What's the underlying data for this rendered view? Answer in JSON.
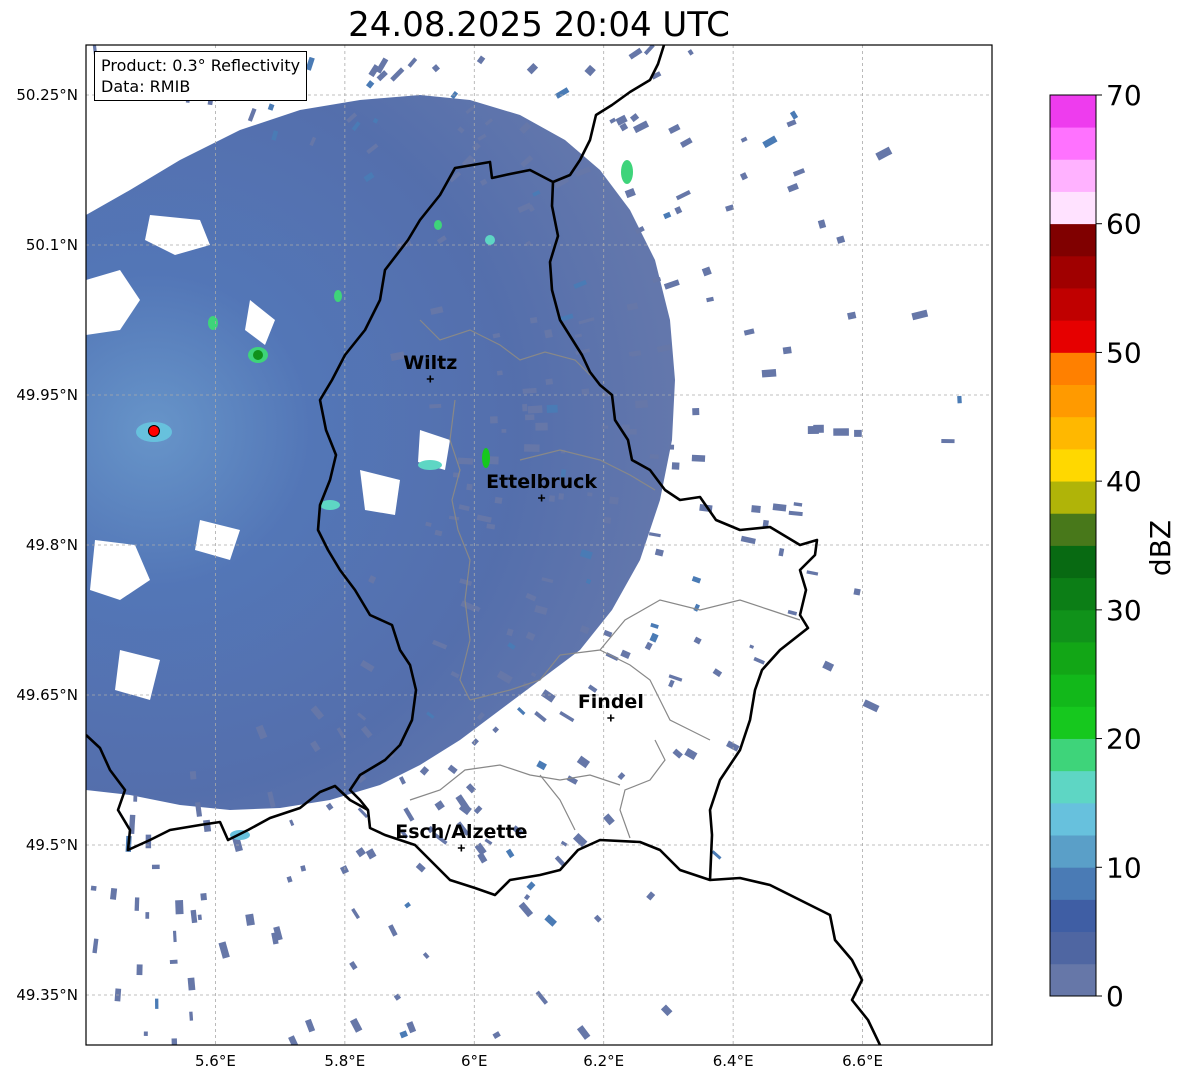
{
  "title": "24.08.2025 20:04 UTC",
  "info": {
    "product": "Product: 0.3° Reflectivity",
    "data": "Data: RMIB"
  },
  "map": {
    "lon_range": [
      5.4,
      6.8
    ],
    "lat_range": [
      49.3,
      50.3
    ],
    "lon_ticks": [
      {
        "value": 5.6,
        "label": "5.6°E"
      },
      {
        "value": 5.8,
        "label": "5.8°E"
      },
      {
        "value": 6.0,
        "label": "6°E"
      },
      {
        "value": 6.2,
        "label": "6.2°E"
      },
      {
        "value": 6.4,
        "label": "6.4°E"
      },
      {
        "value": 6.6,
        "label": "6.6°E"
      }
    ],
    "lat_ticks": [
      {
        "value": 50.25,
        "label": "50.25°N"
      },
      {
        "value": 50.1,
        "label": "50.1°N"
      },
      {
        "value": 49.95,
        "label": "49.95°N"
      },
      {
        "value": 49.8,
        "label": "49.8°N"
      },
      {
        "value": 49.65,
        "label": "49.65°N"
      },
      {
        "value": 49.5,
        "label": "49.5°N"
      },
      {
        "value": 49.35,
        "label": "49.35°N"
      }
    ],
    "grid": true,
    "radar_site": {
      "lon": 5.505,
      "lat": 49.914,
      "color": "#ff0000"
    },
    "cities": [
      {
        "name": "Wiltz",
        "lon": 5.932,
        "lat": 49.966
      },
      {
        "name": "Ettelbruck",
        "lon": 6.104,
        "lat": 49.847
      },
      {
        "name": "Findel",
        "lon": 6.211,
        "lat": 49.627
      },
      {
        "name": "Esch/Alzette",
        "lon": 5.98,
        "lat": 49.497
      }
    ]
  },
  "colorbar": {
    "label": "dBZ",
    "min": 0,
    "max": 70,
    "ticks": [
      0,
      10,
      20,
      30,
      40,
      50,
      60,
      70
    ],
    "colors": [
      "#6677a8",
      "#4f66a2",
      "#3f5ea4",
      "#4a7bb5",
      "#5a9fc8",
      "#67c1dd",
      "#5ed6c4",
      "#3ed47a",
      "#16c81e",
      "#12b81a",
      "#12a616",
      "#10921a",
      "#0c7e16",
      "#086a12",
      "#48781a",
      "#b0b408",
      "#ffd800",
      "#ffb800",
      "#ff9a00",
      "#ff8000",
      "#e60000",
      "#c00000",
      "#a00000",
      "#800000",
      "#ffe2ff",
      "#ffb2ff",
      "#ff72ff",
      "#ee3cee"
    ]
  }
}
